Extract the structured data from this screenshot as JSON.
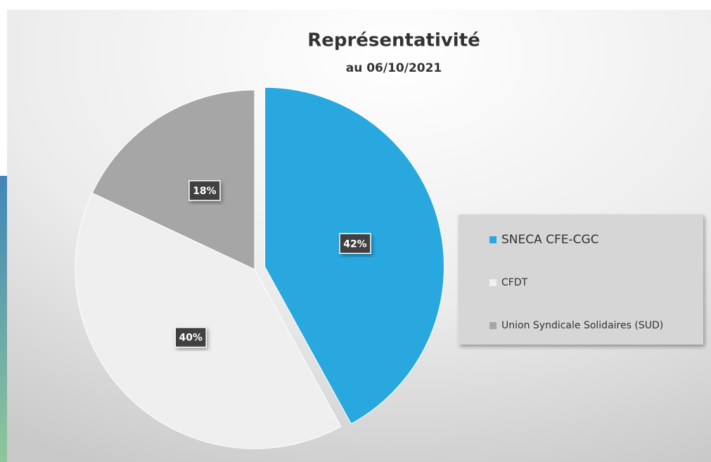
{
  "chart_data": {
    "type": "pie",
    "title": "Représentativité",
    "subtitle": "au 06/10/2021",
    "categories": [
      "SNECA CFE-CGC",
      "CFDT",
      "Union Syndicale Solidaires (SUD)"
    ],
    "values": [
      42,
      40,
      18
    ],
    "value_labels": [
      "42%",
      "40%",
      "18%"
    ],
    "colors": [
      "#29a8e0",
      "#efefef",
      "#a6a6a6"
    ],
    "exploded": [
      true,
      false,
      false
    ],
    "legend": "right"
  }
}
